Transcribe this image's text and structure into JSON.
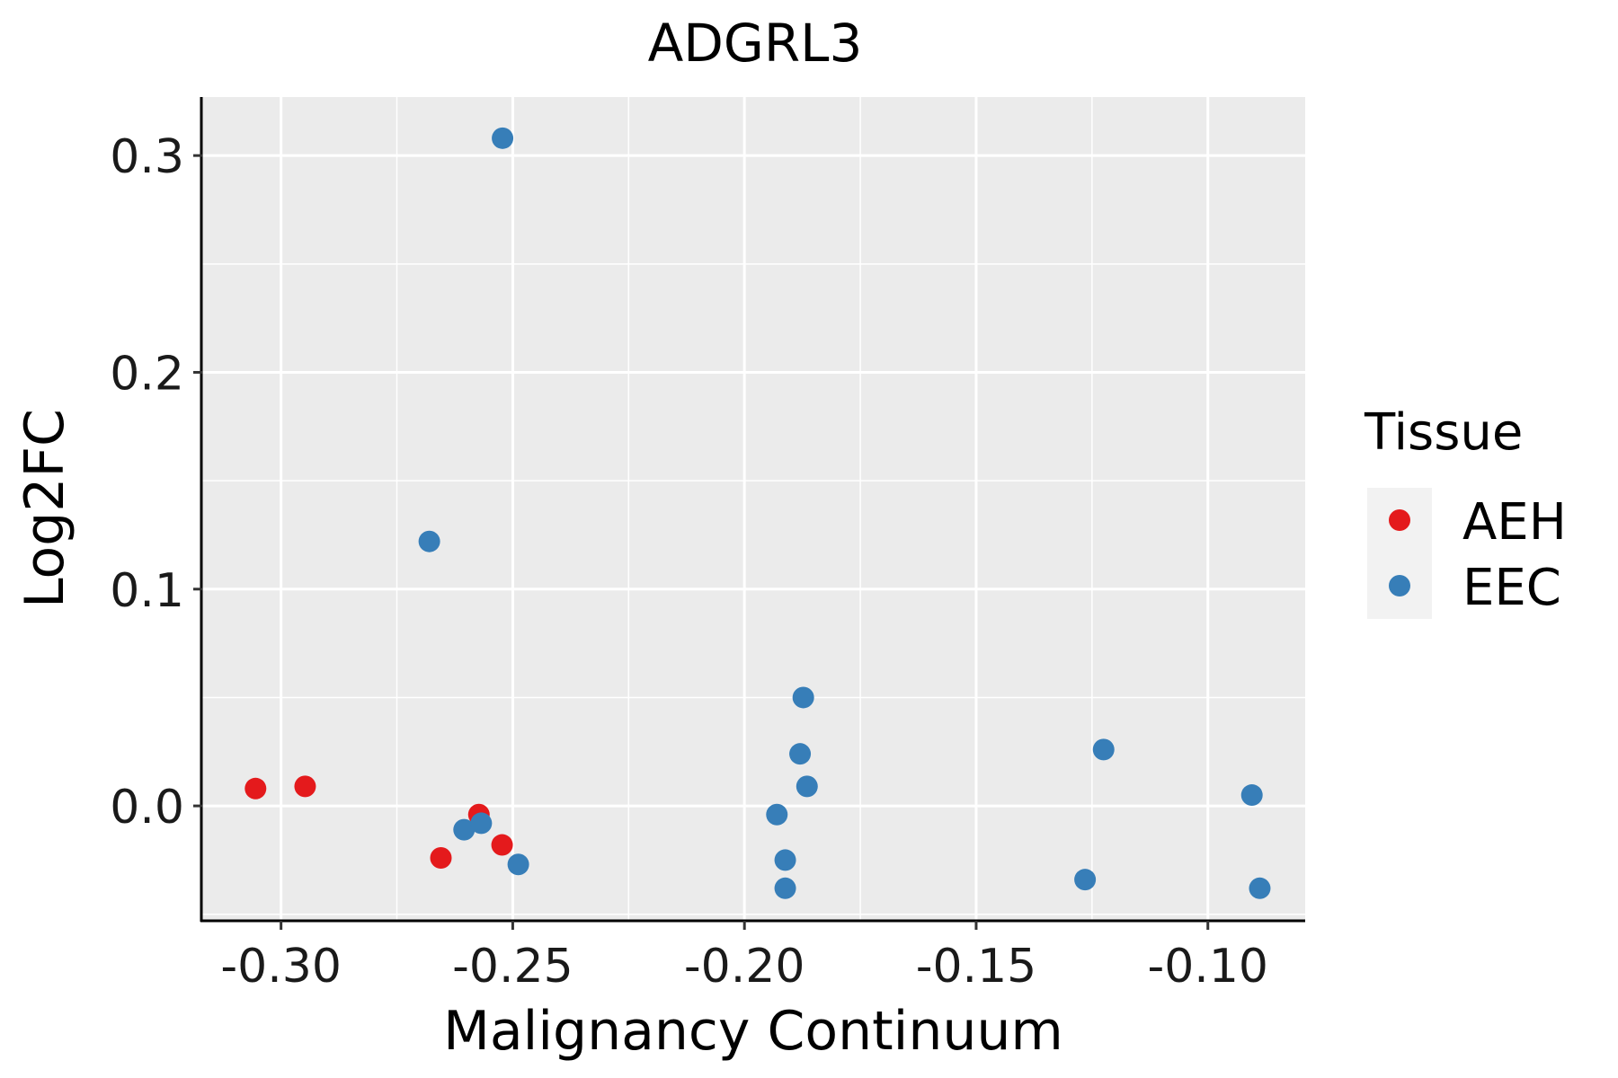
{
  "chart_data": {
    "type": "scatter",
    "title": "ADGRL3",
    "xlabel": "Malignancy Continuum",
    "ylabel": "Log2FC",
    "xlim": [
      -0.317,
      -0.079
    ],
    "ylim": [
      -0.053,
      0.327
    ],
    "x_ticks": [
      -0.3,
      -0.25,
      -0.2,
      -0.15,
      -0.1
    ],
    "x_tick_labels": [
      "-0.30",
      "-0.25",
      "-0.20",
      "-0.15",
      "-0.10"
    ],
    "y_ticks": [
      0.0,
      0.1,
      0.2,
      0.3
    ],
    "y_tick_labels": [
      "0.0",
      "0.1",
      "0.2",
      "0.3"
    ],
    "grid": true,
    "legend": {
      "title": "Tissue",
      "position": "right"
    },
    "series": [
      {
        "name": "AEH",
        "color": "#E41A1C",
        "points": [
          [
            -0.3055,
            0.008
          ],
          [
            -0.2948,
            0.009
          ],
          [
            -0.2655,
            -0.024
          ],
          [
            -0.2573,
            -0.004
          ],
          [
            -0.2523,
            -0.018
          ]
        ]
      },
      {
        "name": "EEC",
        "color": "#377EB8",
        "points": [
          [
            -0.2522,
            0.308
          ],
          [
            -0.268,
            0.122
          ],
          [
            -0.2605,
            -0.011
          ],
          [
            -0.2568,
            -0.008
          ],
          [
            -0.2488,
            -0.027
          ],
          [
            -0.1873,
            0.05
          ],
          [
            -0.188,
            0.024
          ],
          [
            -0.1865,
            0.009
          ],
          [
            -0.193,
            -0.004
          ],
          [
            -0.1912,
            -0.025
          ],
          [
            -0.1912,
            -0.038
          ],
          [
            -0.1225,
            0.026
          ],
          [
            -0.1265,
            -0.034
          ],
          [
            -0.0905,
            0.005
          ],
          [
            -0.0888,
            -0.038
          ]
        ]
      }
    ]
  }
}
